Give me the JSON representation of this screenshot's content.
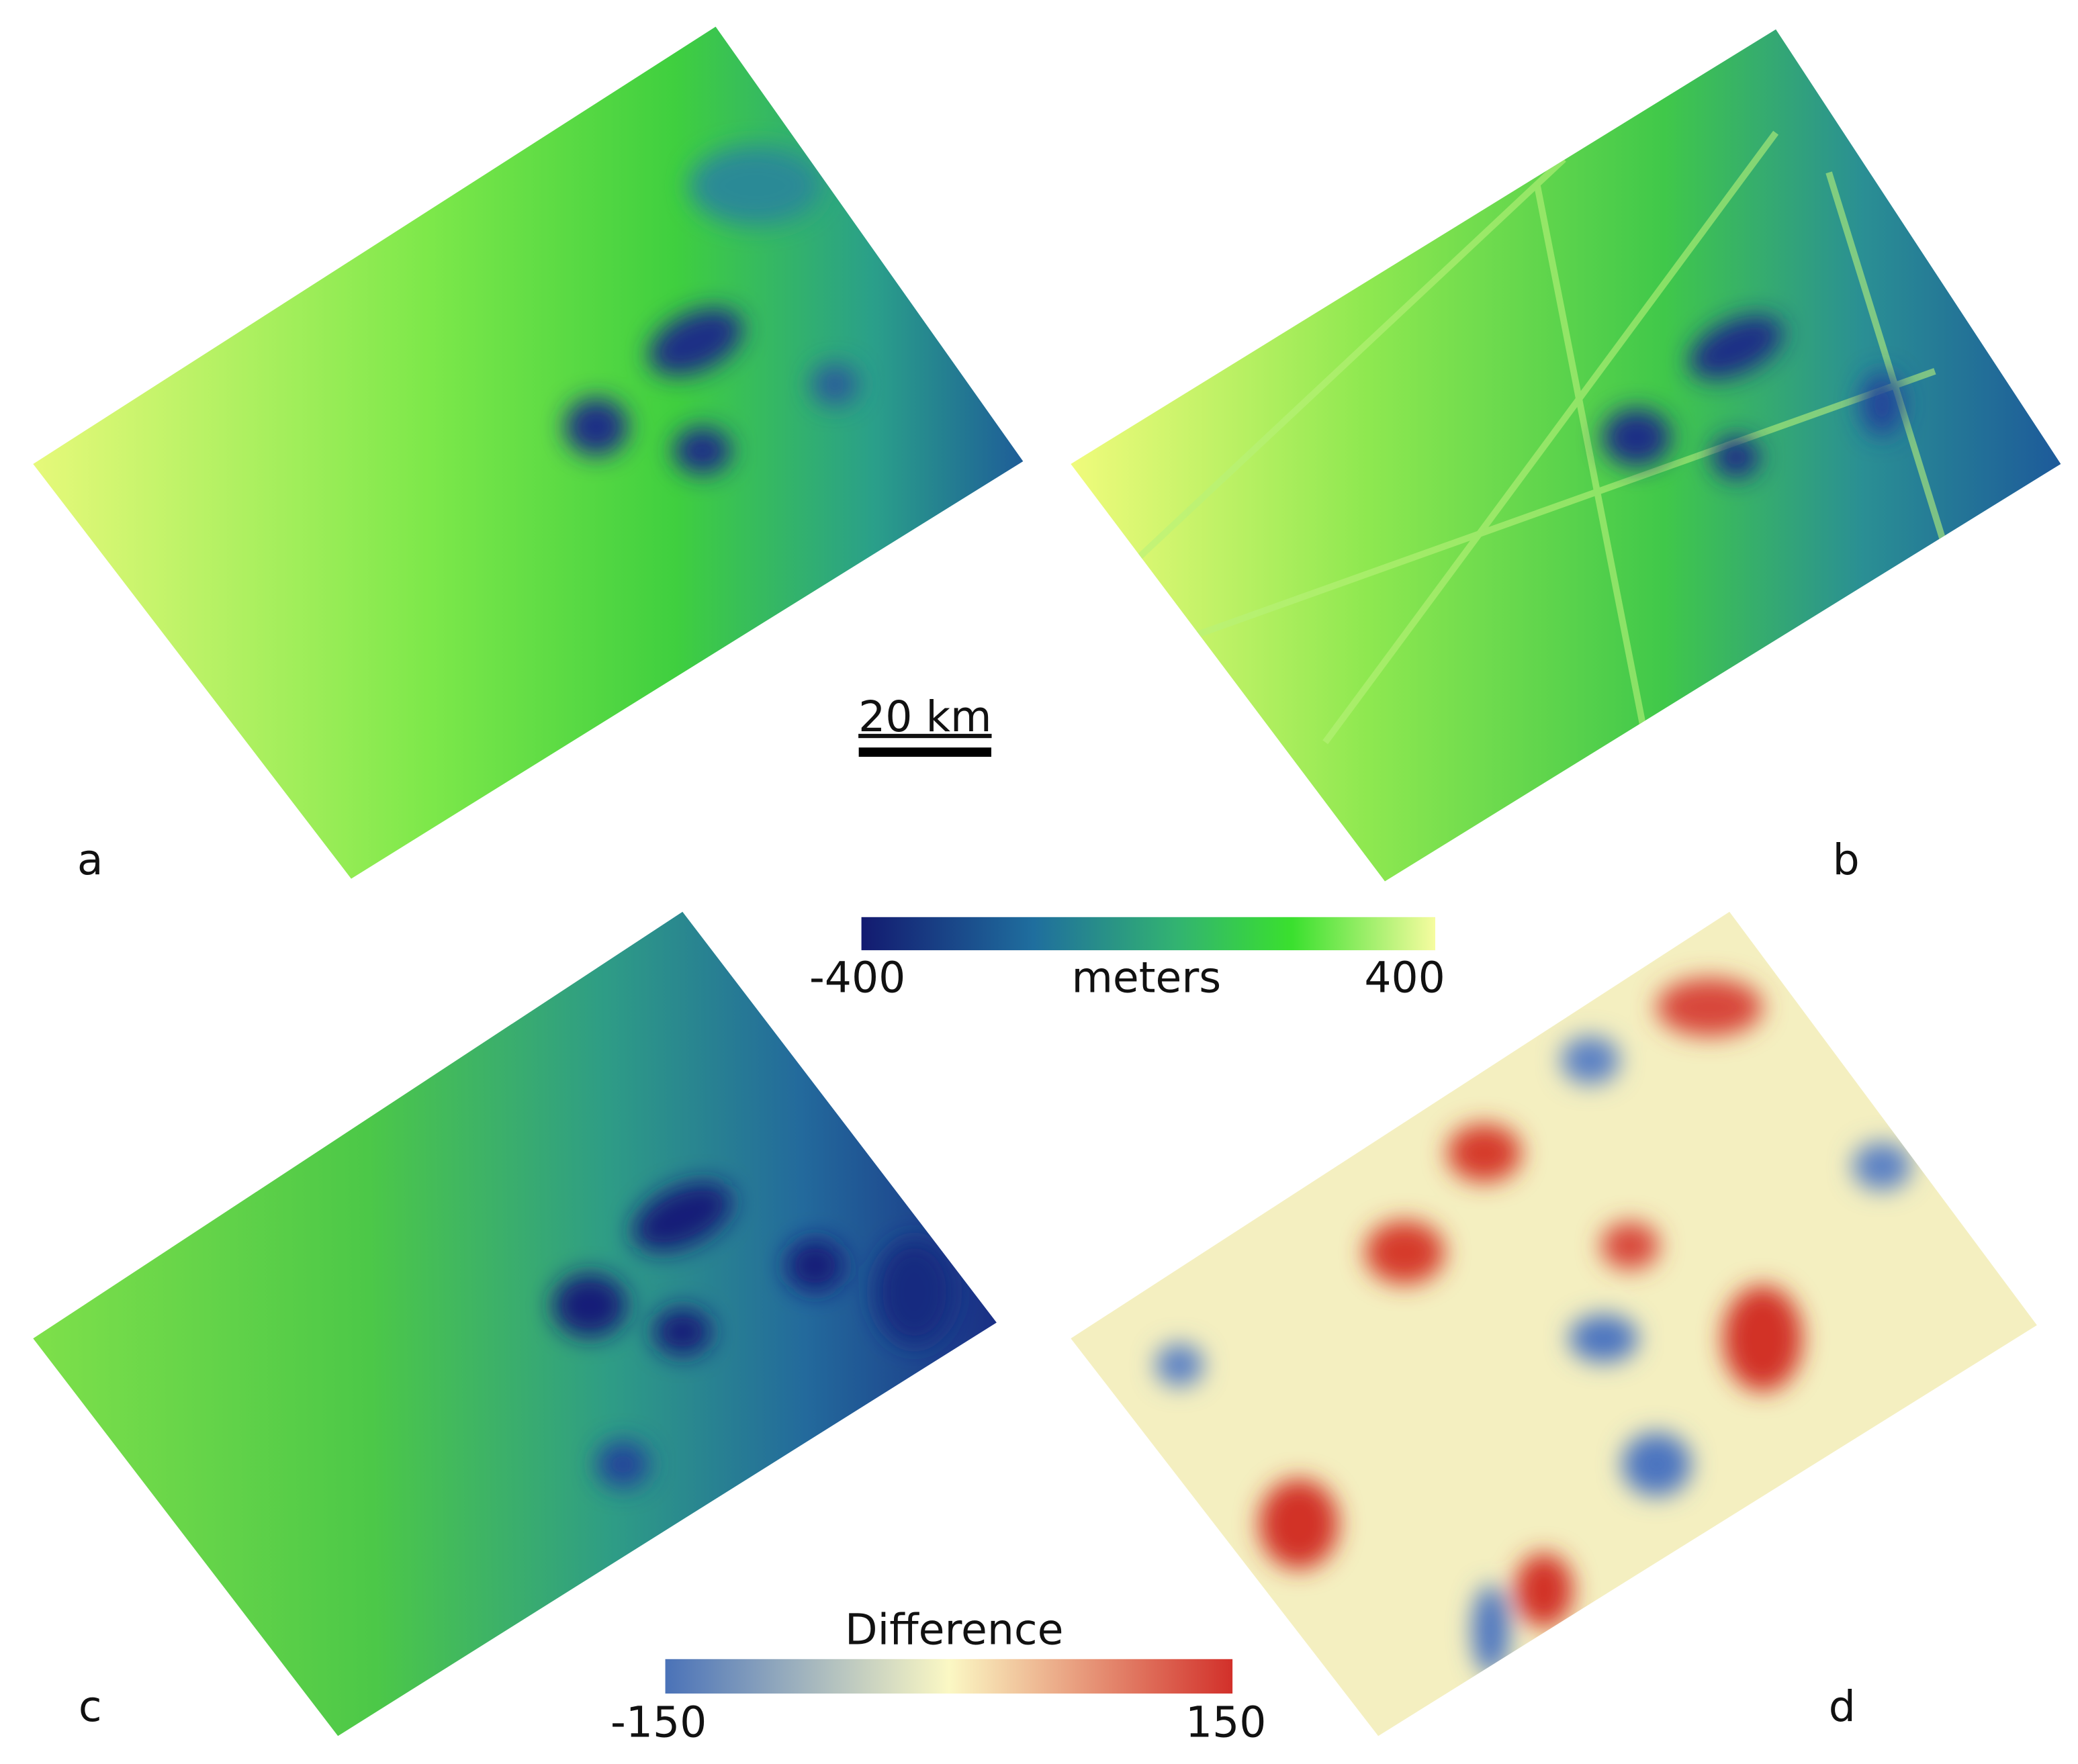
{
  "panels": [
    {
      "label": "a"
    },
    {
      "label": "b"
    },
    {
      "label": "c"
    },
    {
      "label": "d"
    }
  ],
  "scale_bar": {
    "label": "20 km"
  },
  "elevation_colorbar": {
    "title": "meters",
    "min_label": "-400",
    "max_label": "400"
  },
  "difference_colorbar": {
    "title": "Difference",
    "min_label": "-150",
    "max_label": "150"
  }
}
